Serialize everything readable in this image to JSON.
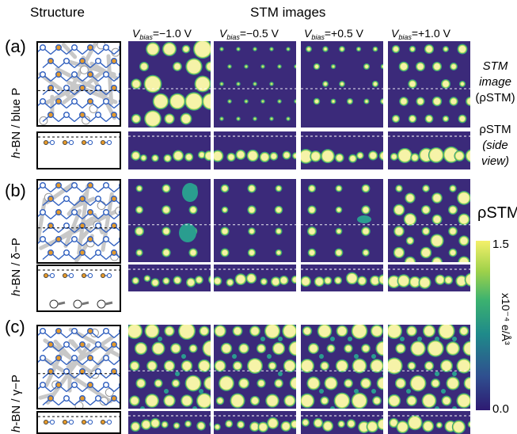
{
  "headers": {
    "structure": "Structure",
    "stm": "STM images"
  },
  "bias": {
    "prefix": "V",
    "sub": "bias",
    "values": [
      "=−1.0 V",
      "=−0.5 V",
      "=+0.5 V",
      "=+1.0 V"
    ]
  },
  "rows": [
    {
      "panel": "(a)",
      "label_italic": "h",
      "label_rest": "-BN / blue P"
    },
    {
      "panel": "(b)",
      "label_italic": "h",
      "label_rest": "-BN / δ−P"
    },
    {
      "panel": "(c)",
      "label_italic": "h",
      "label_rest": "-BN / γ−P"
    }
  ],
  "annotations": {
    "stm_line1": "STM",
    "stm_line2": "image",
    "stm_line3": "(ρSTM)",
    "side_line1": "ρSTM",
    "side_line2": "(side",
    "side_line3": "view)"
  },
  "colorbar": {
    "title": "ρSTM",
    "max": "1.5",
    "min": "0.0",
    "unit": "x10⁻⁴ e/Å³"
  },
  "colors": {
    "stm_bg": "#3b2a7a",
    "spot": "#f6f3a8",
    "teal": "#2a9d8f",
    "boron": "#e59a2b",
    "nitrogen": "#2f5fbf"
  }
}
